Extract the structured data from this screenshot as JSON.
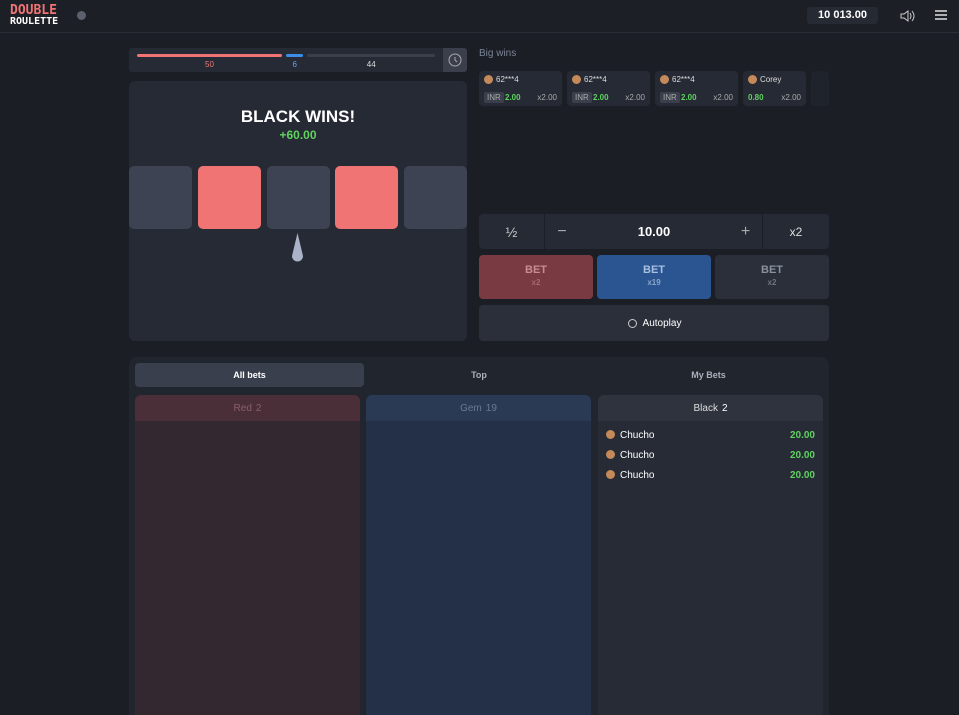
{
  "header": {
    "logo_top": "DOUBLE",
    "logo_bottom": "ROULETTE",
    "balance": "10 013.00"
  },
  "stats": {
    "red": 50,
    "gem": 6,
    "black": 44
  },
  "result": {
    "title": "BLACK WINS!",
    "amount": "+60.00"
  },
  "big_wins": {
    "title": "Big wins",
    "cards": [
      {
        "user": "62***4",
        "currency": "INR",
        "amount": "2.00",
        "multiplier": "x2.00"
      },
      {
        "user": "62***4",
        "currency": "INR",
        "amount": "2.00",
        "multiplier": "x2.00"
      },
      {
        "user": "62***4",
        "currency": "INR",
        "amount": "2.00",
        "multiplier": "x2.00"
      },
      {
        "user": "Corey",
        "amount": "0.80",
        "multiplier": "x2.00"
      }
    ]
  },
  "bet_controls": {
    "half": "½",
    "minus": "−",
    "amount": "10.00",
    "plus": "+",
    "double": "x2"
  },
  "bet_buttons": [
    {
      "label": "BET",
      "multiplier": "x2"
    },
    {
      "label": "BET",
      "multiplier": "x19"
    },
    {
      "label": "BET",
      "multiplier": "x2"
    }
  ],
  "autoplay": "Autoplay",
  "tabs": [
    "All bets",
    "Top",
    "My Bets"
  ],
  "columns": [
    {
      "name": "Red",
      "count": "2",
      "rows": []
    },
    {
      "name": "Gem",
      "count": "19",
      "rows": []
    },
    {
      "name": "Black",
      "count": "2",
      "rows": [
        {
          "user": "Chucho",
          "amount": "20.00"
        },
        {
          "user": "Chucho",
          "amount": "20.00"
        },
        {
          "user": "Chucho",
          "amount": "20.00"
        }
      ]
    }
  ]
}
